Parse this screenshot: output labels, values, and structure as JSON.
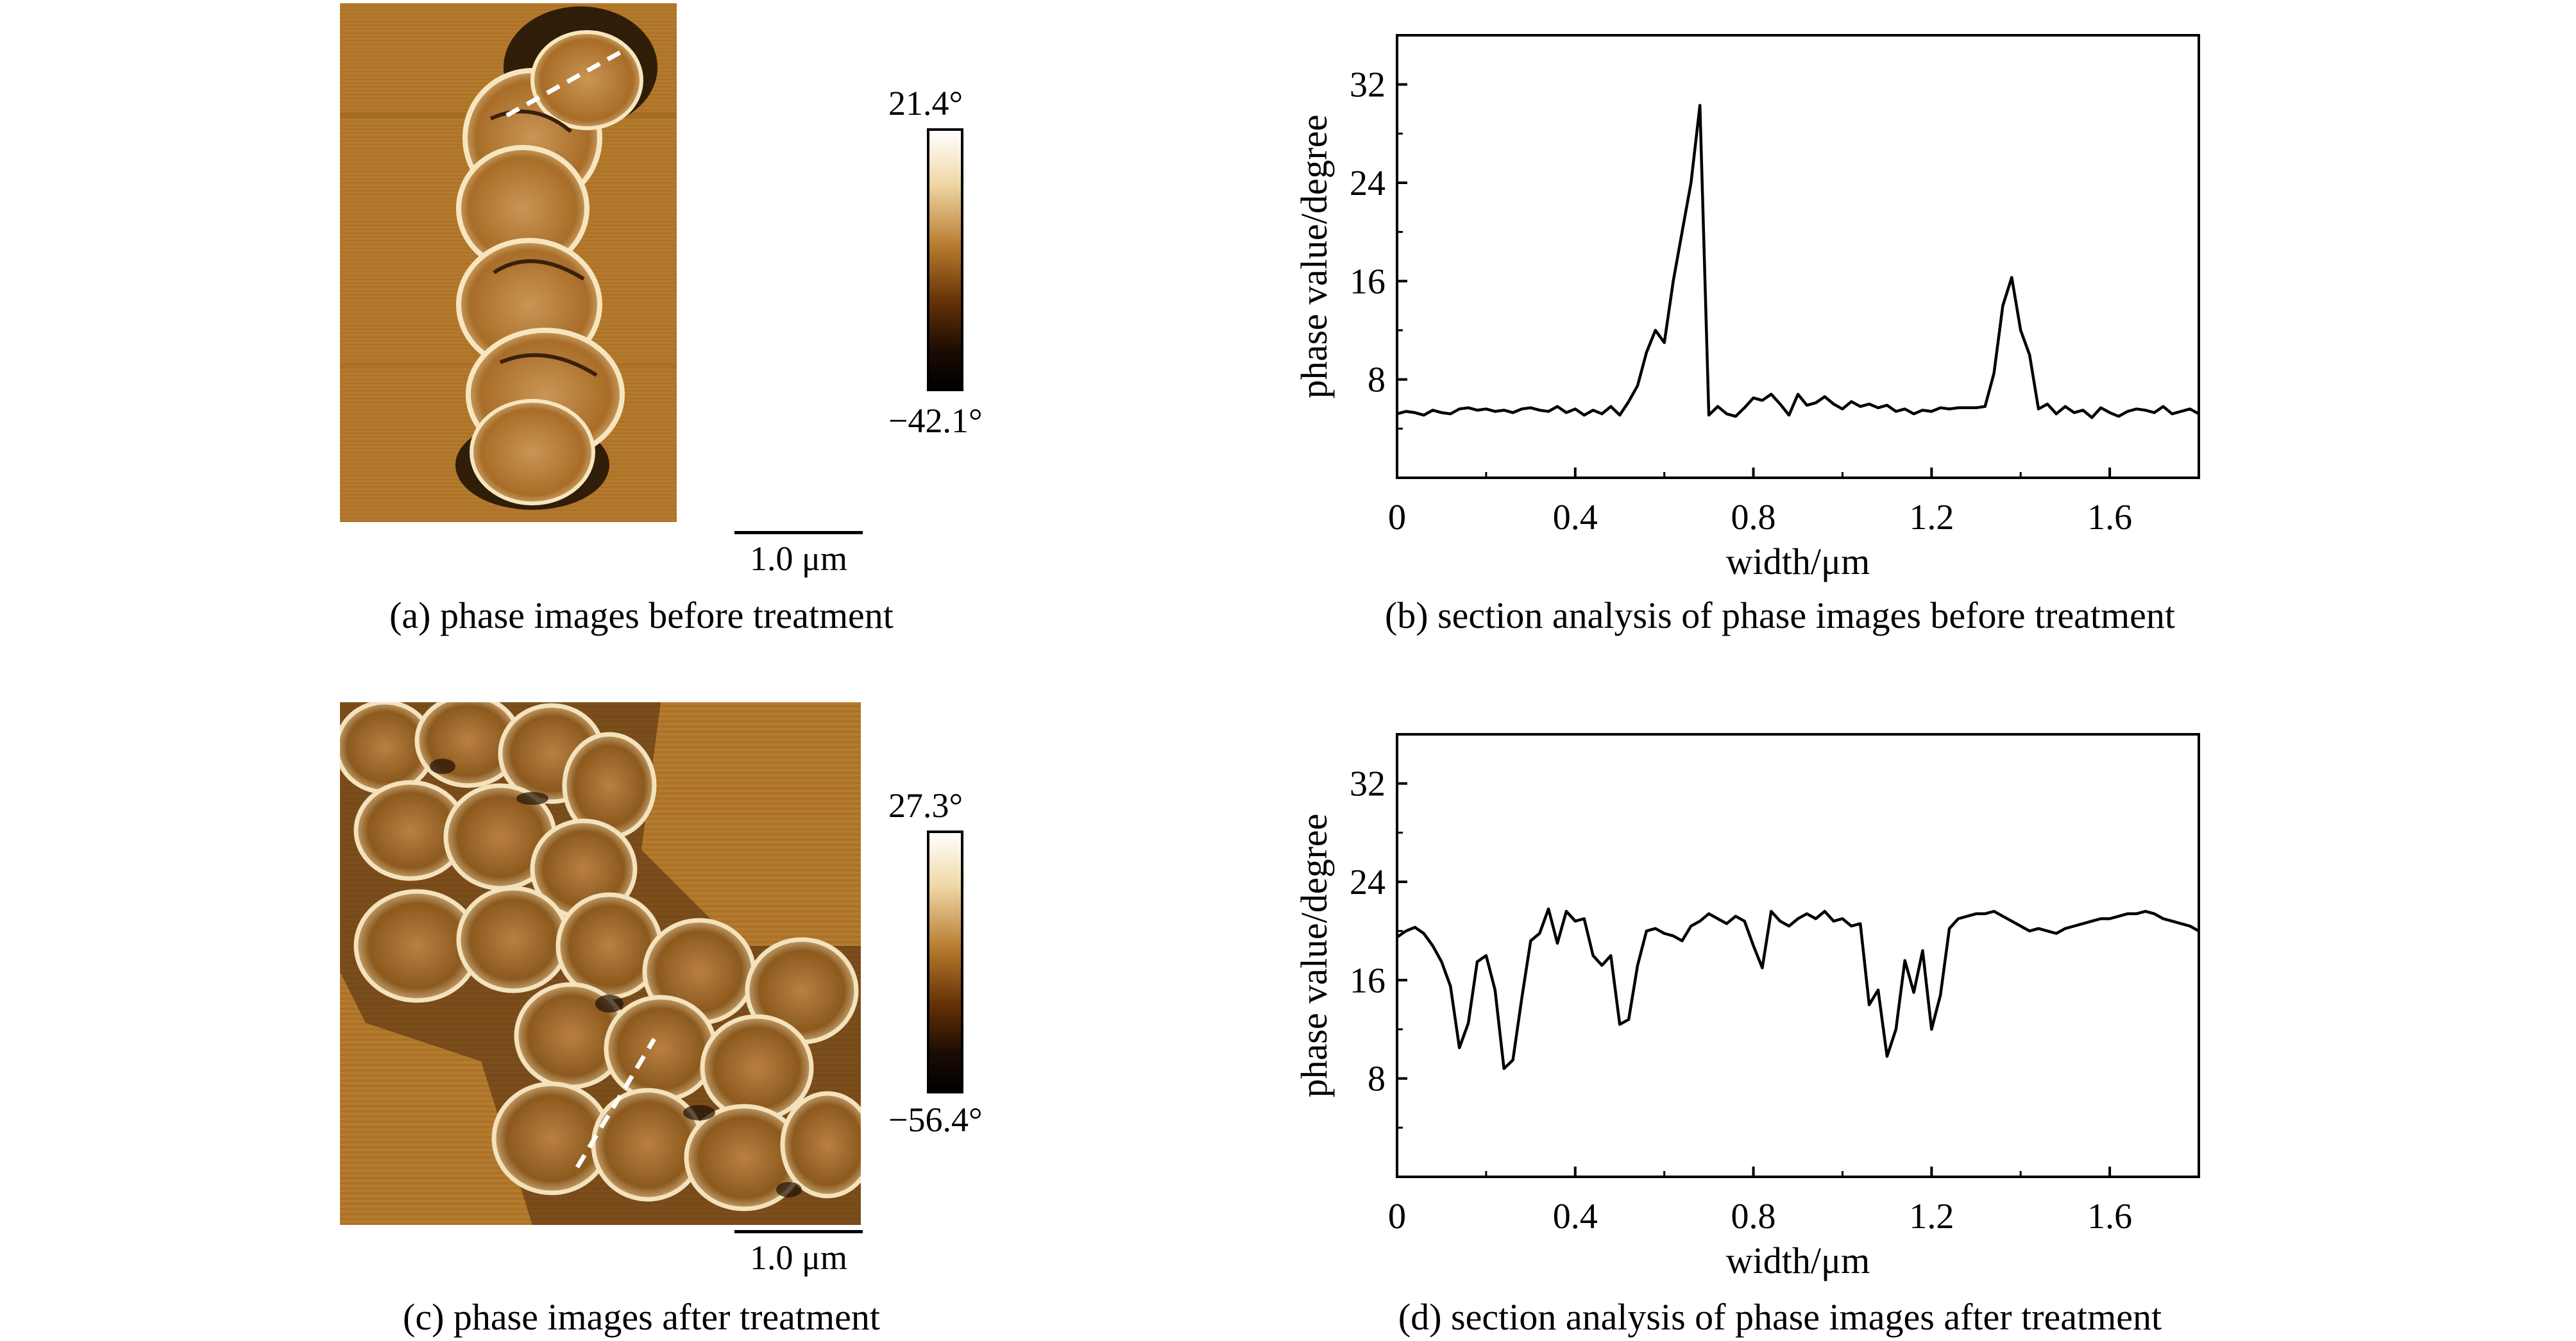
{
  "panels": {
    "a": {
      "colorbar_max": "21.4°",
      "colorbar_min": "−42.1°",
      "scale_label": "1.0 μm",
      "caption": "(a) phase images before treatment"
    },
    "c": {
      "colorbar_max": "27.3°",
      "colorbar_min": "−56.4°",
      "scale_label": "1.0 μm",
      "caption": "(c) phase images after treatment"
    },
    "b": {
      "caption": "(b) section analysis of phase images before treatment"
    },
    "d": {
      "caption": "(d) section analysis of phase images after treatment"
    }
  },
  "colors": {
    "afm_background": "#b57a2c",
    "colorbar_top": "#ffffff",
    "colorbar_mid": "#a0621f",
    "colorbar_bottom": "#000000",
    "line": "#000000"
  },
  "chart_data": [
    {
      "type": "line",
      "panel": "b",
      "xlabel": "width/μm",
      "ylabel": "phase value/degree",
      "xlim": [
        0,
        1.8
      ],
      "ylim": [
        0,
        36
      ],
      "xticks": [
        0,
        0.4,
        0.8,
        1.2,
        1.6
      ],
      "xtick_labels": [
        "0",
        "0.4",
        "0.8",
        "1.2",
        "1.6"
      ],
      "yticks": [
        8,
        16,
        24,
        32
      ],
      "ytick_labels": [
        "8",
        "16",
        "24",
        "32"
      ],
      "x": [
        0,
        0.02,
        0.04,
        0.06,
        0.08,
        0.1,
        0.12,
        0.14,
        0.16,
        0.18,
        0.2,
        0.22,
        0.24,
        0.26,
        0.28,
        0.3,
        0.32,
        0.34,
        0.36,
        0.38,
        0.4,
        0.42,
        0.44,
        0.46,
        0.48,
        0.5,
        0.52,
        0.54,
        0.56,
        0.58,
        0.6,
        0.62,
        0.64,
        0.66,
        0.68,
        0.7,
        0.72,
        0.74,
        0.76,
        0.78,
        0.8,
        0.82,
        0.84,
        0.86,
        0.88,
        0.9,
        0.92,
        0.94,
        0.96,
        0.98,
        1.0,
        1.02,
        1.04,
        1.06,
        1.08,
        1.1,
        1.12,
        1.14,
        1.16,
        1.18,
        1.2,
        1.22,
        1.24,
        1.26,
        1.28,
        1.3,
        1.32,
        1.34,
        1.36,
        1.38,
        1.4,
        1.42,
        1.44,
        1.46,
        1.48,
        1.5,
        1.52,
        1.54,
        1.56,
        1.58,
        1.6,
        1.62,
        1.64,
        1.66,
        1.68,
        1.7,
        1.72,
        1.74,
        1.76,
        1.78,
        1.8
      ],
      "y": [
        5.2,
        5.4,
        5.3,
        5.1,
        5.5,
        5.3,
        5.2,
        5.6,
        5.7,
        5.5,
        5.6,
        5.4,
        5.5,
        5.3,
        5.6,
        5.7,
        5.5,
        5.4,
        5.8,
        5.3,
        5.6,
        5.1,
        5.5,
        5.2,
        5.8,
        5.1,
        6.2,
        7.5,
        10.2,
        12.0,
        11.0,
        16.0,
        20.0,
        24.0,
        30.3,
        5.1,
        5.8,
        5.2,
        5.0,
        5.7,
        6.5,
        6.3,
        6.8,
        6.0,
        5.1,
        6.8,
        5.9,
        6.1,
        6.6,
        6.0,
        5.6,
        6.2,
        5.8,
        6.0,
        5.7,
        5.9,
        5.4,
        5.6,
        5.2,
        5.5,
        5.4,
        5.7,
        5.6,
        5.7,
        5.7,
        5.7,
        5.8,
        8.5,
        14.0,
        16.3,
        12.0,
        10.0,
        5.6,
        6.0,
        5.2,
        5.8,
        5.3,
        5.5,
        4.9,
        5.7,
        5.3,
        5.0,
        5.4,
        5.6,
        5.5,
        5.3,
        5.8,
        5.2,
        5.4,
        5.6,
        5.2
      ]
    },
    {
      "type": "line",
      "panel": "d",
      "xlabel": "width/μm",
      "ylabel": "phase value/degree",
      "xlim": [
        0,
        1.8
      ],
      "ylim": [
        0,
        36
      ],
      "xticks": [
        0,
        0.4,
        0.8,
        1.2,
        1.6
      ],
      "xtick_labels": [
        "0",
        "0.4",
        "0.8",
        "1.2",
        "1.6"
      ],
      "yticks": [
        8,
        16,
        24,
        32
      ],
      "ytick_labels": [
        "8",
        "16",
        "24",
        "32"
      ],
      "x": [
        0,
        0.02,
        0.04,
        0.06,
        0.08,
        0.1,
        0.12,
        0.14,
        0.16,
        0.18,
        0.2,
        0.22,
        0.24,
        0.26,
        0.28,
        0.3,
        0.32,
        0.34,
        0.36,
        0.38,
        0.4,
        0.42,
        0.44,
        0.46,
        0.48,
        0.5,
        0.52,
        0.54,
        0.56,
        0.58,
        0.6,
        0.62,
        0.64,
        0.66,
        0.68,
        0.7,
        0.72,
        0.74,
        0.76,
        0.78,
        0.8,
        0.82,
        0.84,
        0.86,
        0.88,
        0.9,
        0.92,
        0.94,
        0.96,
        0.98,
        1.0,
        1.02,
        1.04,
        1.06,
        1.08,
        1.1,
        1.12,
        1.14,
        1.16,
        1.18,
        1.2,
        1.22,
        1.24,
        1.26,
        1.28,
        1.3,
        1.32,
        1.34,
        1.36,
        1.38,
        1.4,
        1.42,
        1.44,
        1.46,
        1.48,
        1.5,
        1.52,
        1.54,
        1.56,
        1.58,
        1.6,
        1.62,
        1.64,
        1.66,
        1.68,
        1.7,
        1.72,
        1.74,
        1.76,
        1.78,
        1.8
      ],
      "y": [
        19.5,
        20.0,
        20.3,
        19.8,
        18.8,
        17.5,
        15.5,
        10.5,
        12.5,
        17.5,
        18.0,
        15.2,
        8.8,
        9.5,
        14.5,
        19.2,
        19.8,
        21.8,
        19.0,
        21.6,
        20.8,
        21.0,
        18.0,
        17.2,
        18.0,
        12.4,
        12.8,
        17.2,
        20.0,
        20.2,
        19.8,
        19.6,
        19.2,
        20.4,
        20.8,
        21.4,
        21.0,
        20.6,
        21.2,
        20.8,
        18.8,
        17.0,
        21.6,
        20.8,
        20.4,
        21.0,
        21.4,
        21.0,
        21.6,
        20.8,
        21.0,
        20.4,
        20.6,
        14.0,
        15.2,
        9.8,
        12.0,
        17.6,
        15.0,
        18.4,
        12.0,
        14.8,
        20.2,
        21.0,
        21.2,
        21.4,
        21.4,
        21.6,
        21.2,
        20.8,
        20.4,
        20.0,
        20.2,
        20.0,
        19.8,
        20.2,
        20.4,
        20.6,
        20.8,
        21.0,
        21.0,
        21.2,
        21.4,
        21.4,
        21.6,
        21.4,
        21.0,
        20.8,
        20.6,
        20.4,
        20.0
      ]
    }
  ]
}
